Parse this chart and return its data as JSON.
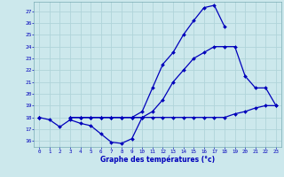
{
  "xlabel": "Graphe des températures (°c)",
  "hours": [
    0,
    1,
    2,
    3,
    4,
    5,
    6,
    7,
    8,
    9,
    10,
    11,
    12,
    13,
    14,
    15,
    16,
    17,
    18,
    19,
    20,
    21,
    22,
    23
  ],
  "line1": [
    18.0,
    17.8,
    17.2,
    17.8,
    17.5,
    17.3,
    16.6,
    15.9,
    15.8,
    16.2,
    18.0,
    null,
    null,
    null,
    null,
    null,
    null,
    null,
    null,
    null,
    null,
    null,
    null,
    null
  ],
  "line2": [
    18.0,
    null,
    null,
    18.0,
    18.0,
    18.0,
    18.0,
    18.0,
    18.0,
    18.0,
    18.0,
    18.0,
    18.0,
    18.0,
    18.0,
    18.0,
    18.0,
    18.0,
    18.0,
    18.3,
    18.5,
    18.8,
    19.0,
    19.0
  ],
  "line3": [
    18.0,
    null,
    null,
    18.0,
    18.0,
    18.0,
    18.0,
    18.0,
    18.0,
    18.0,
    18.5,
    20.5,
    22.5,
    23.5,
    25.0,
    26.2,
    27.3,
    27.5,
    25.7,
    null,
    null,
    null,
    null,
    null
  ],
  "line4": [
    18.0,
    null,
    null,
    18.0,
    18.0,
    18.0,
    18.0,
    18.0,
    18.0,
    18.0,
    18.0,
    18.5,
    19.5,
    21.0,
    22.0,
    23.0,
    23.5,
    24.0,
    24.0,
    24.0,
    21.5,
    20.5,
    20.5,
    19.0
  ],
  "ylim": [
    15.5,
    27.8
  ],
  "yticks": [
    16,
    17,
    18,
    19,
    20,
    21,
    22,
    23,
    24,
    25,
    26,
    27
  ],
  "bg_color": "#cce8ec",
  "line_color": "#0000bb",
  "grid_color": "#b0d4da",
  "markersize": 2.0,
  "linewidth": 0.9
}
